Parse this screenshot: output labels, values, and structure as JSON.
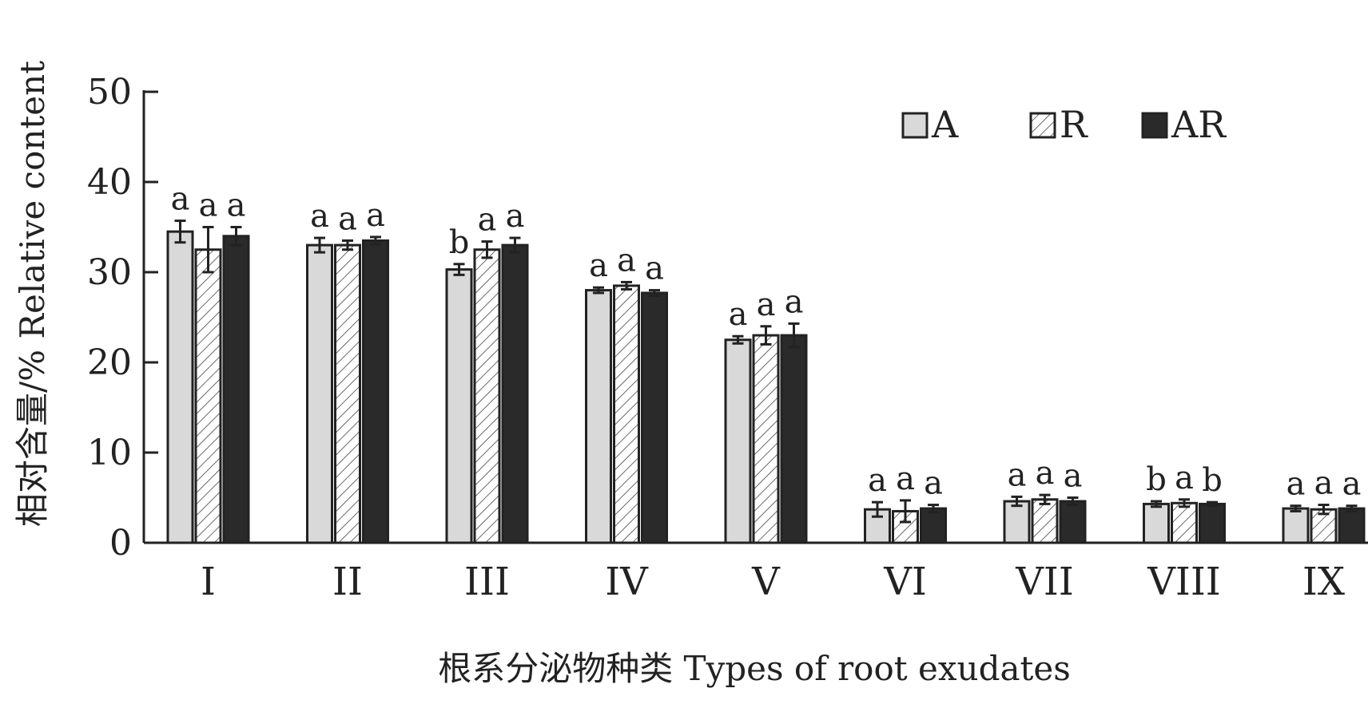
{
  "chart_data": {
    "type": "bar",
    "ylabel": "相对含量/% Relative content",
    "xlabel": "根系分泌物种类 Types of root exudates",
    "ylim": [
      0,
      50
    ],
    "yticks": [
      0,
      10,
      20,
      30,
      40,
      50
    ],
    "categories": [
      "I",
      "II",
      "III",
      "IV",
      "V",
      "VI",
      "VII",
      "VIII",
      "IX"
    ],
    "series": [
      {
        "name": "A",
        "values": [
          34.5,
          33.0,
          30.3,
          28.0,
          22.5,
          3.7,
          4.6,
          4.3,
          3.8
        ],
        "errors": [
          1.2,
          0.8,
          0.6,
          0.3,
          0.4,
          0.8,
          0.5,
          0.3,
          0.3
        ],
        "letters": [
          "a",
          "a",
          "b",
          "a",
          "a",
          "a",
          "a",
          "b",
          "a"
        ]
      },
      {
        "name": "R",
        "values": [
          32.5,
          33.0,
          32.5,
          28.5,
          23.0,
          3.5,
          4.8,
          4.4,
          3.7
        ],
        "errors": [
          2.5,
          0.5,
          0.9,
          0.4,
          1.0,
          1.2,
          0.5,
          0.4,
          0.5
        ],
        "letters": [
          "a",
          "a",
          "a",
          "a",
          "a",
          "a",
          "a",
          "a",
          "a"
        ]
      },
      {
        "name": "AR",
        "values": [
          34.0,
          33.5,
          33.0,
          27.7,
          23.0,
          3.8,
          4.6,
          4.3,
          3.8
        ],
        "errors": [
          1.0,
          0.4,
          0.8,
          0.3,
          1.3,
          0.4,
          0.4,
          0.2,
          0.3
        ],
        "letters": [
          "a",
          "a",
          "a",
          "a",
          "a",
          "a",
          "a",
          "b",
          "a"
        ]
      }
    ],
    "legend_position": "top-right",
    "colors": {
      "A": "#d9d9d9",
      "R": "#ffffff",
      "AR": "#2a2a2a",
      "axis": "#222222"
    },
    "patterns": {
      "R": "diagonal-hatch"
    }
  }
}
